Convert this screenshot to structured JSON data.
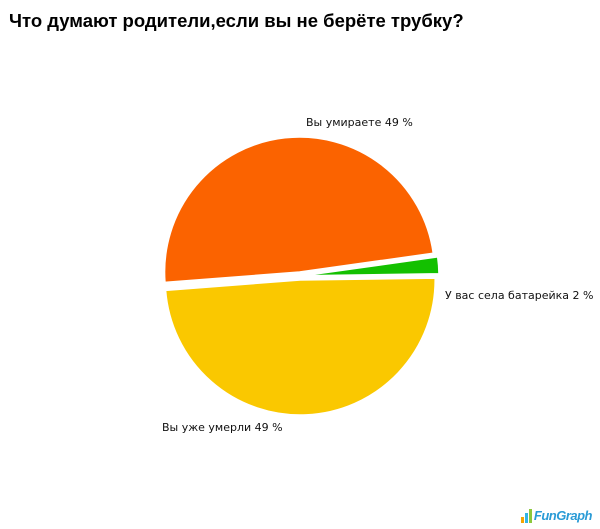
{
  "chart_data": {
    "type": "pie",
    "title": "Что думают родители,если вы не берёте трубку?",
    "slices": [
      {
        "label": "Вы умираете 49 %",
        "value": 49,
        "color": "#fb6300"
      },
      {
        "label": "У вас села батарейка 2 %",
        "value": 2,
        "color": "#13c000"
      },
      {
        "label": "Вы уже умерли 49 %",
        "value": 49,
        "color": "#fac800"
      }
    ]
  },
  "logo": {
    "text": "FunGraph",
    "bar_colors": [
      "#f5a500",
      "#32b4e6",
      "#8cc83c"
    ]
  }
}
